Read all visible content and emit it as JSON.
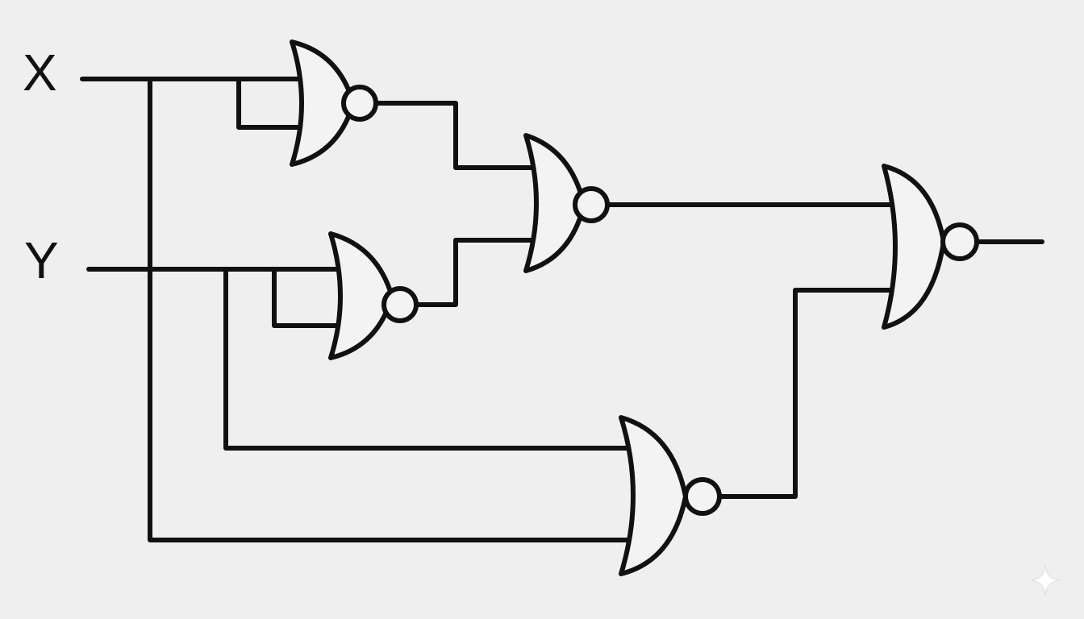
{
  "diagram": {
    "inputs": [
      {
        "id": "x",
        "label": "X"
      },
      {
        "id": "y",
        "label": "Y"
      }
    ],
    "gates": [
      {
        "id": "g1",
        "type": "NOR",
        "inputs": [
          "X",
          "X"
        ]
      },
      {
        "id": "g2",
        "type": "NOR",
        "inputs": [
          "Y",
          "Y"
        ]
      },
      {
        "id": "g3",
        "type": "NOR",
        "inputs": [
          "g1",
          "g2"
        ]
      },
      {
        "id": "g4",
        "type": "NOR",
        "inputs": [
          "Y",
          "X"
        ]
      },
      {
        "id": "g5",
        "type": "NOR",
        "inputs": [
          "g3",
          "g4"
        ]
      }
    ],
    "output": {
      "id": "out",
      "label": ""
    }
  },
  "icons": {
    "corner": "sparkle-icon"
  },
  "colors": {
    "background": "#efefef",
    "ink": "#111111"
  }
}
